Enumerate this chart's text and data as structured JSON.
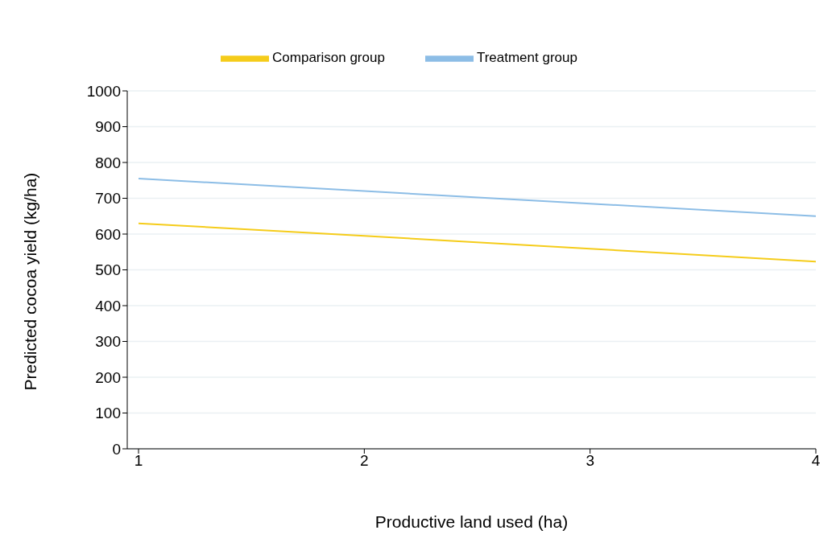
{
  "chart_data": {
    "type": "line",
    "xlabel": "Productive land used (ha)",
    "ylabel": "Predicted cocoa yield (kg/ha)",
    "x": [
      1,
      2,
      3,
      4
    ],
    "series": [
      {
        "name": "Comparison group",
        "color": "#f5cc1a",
        "values": [
          630,
          595,
          559,
          523
        ]
      },
      {
        "name": "Treatment group",
        "color": "#8cbde6",
        "values": [
          755,
          720,
          685,
          650
        ]
      }
    ],
    "xlim": [
      0.95,
      4
    ],
    "xticks": [
      1,
      2,
      3,
      4
    ],
    "ylim": [
      0,
      1000
    ],
    "yticks": [
      0,
      100,
      200,
      300,
      400,
      500,
      600,
      700,
      800,
      900,
      1000
    ],
    "grid": "y",
    "legend": "top",
    "marker": "none",
    "line_style": "solid"
  }
}
